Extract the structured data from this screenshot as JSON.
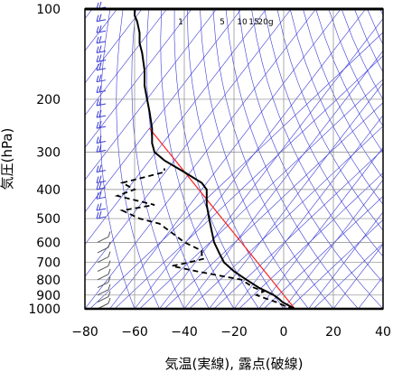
{
  "chart_data": {
    "type": "line",
    "title": "",
    "xlabel": "気温(実線), 露点(破線)",
    "ylabel": "気圧(hPa)",
    "x_unit": "°C",
    "y_scale": "log",
    "xlim": [
      -80,
      40
    ],
    "ylim": [
      1000,
      100
    ],
    "x_ticks": [
      -80,
      -60,
      -40,
      -20,
      0,
      20,
      40
    ],
    "x_tick_labels": [
      "−80",
      "−60",
      "−40",
      "−20",
      "0",
      "20",
      "40"
    ],
    "y_ticks": [
      100,
      200,
      300,
      400,
      500,
      600,
      700,
      800,
      900,
      1000
    ],
    "y_tick_labels": [
      "100",
      "200",
      "300",
      "400",
      "500",
      "600",
      "700",
      "800",
      "900",
      "1000"
    ],
    "mixing_ratio_labels": [
      "1",
      "5",
      "10",
      "15",
      "20g"
    ],
    "colors": {
      "temperature": "#000000",
      "dewpoint": "#000000",
      "background_lines": "#3a3ad6",
      "reference_line": "#ff2020",
      "wind_barbs": "#3a3ad6",
      "surface_barbs": "#555555"
    },
    "series": [
      {
        "points": [
          [
            1000,
            4.5
          ],
          [
            975,
            2
          ],
          [
            950,
            -0.5
          ],
          [
            925,
            -2
          ],
          [
            900,
            -4
          ],
          [
            875,
            -7
          ],
          [
            850,
            -10
          ],
          [
            800,
            -15
          ],
          [
            750,
            -20
          ],
          [
            700,
            -24
          ],
          [
            650,
            -26
          ],
          [
            600,
            -28
          ],
          [
            550,
            -29
          ],
          [
            500,
            -30
          ],
          [
            450,
            -31
          ],
          [
            400,
            -31
          ],
          [
            380,
            -33
          ],
          [
            350,
            -40
          ],
          [
            320,
            -48
          ],
          [
            300,
            -52
          ],
          [
            280,
            -53
          ],
          [
            250,
            -53
          ],
          [
            220,
            -54
          ],
          [
            200,
            -55
          ],
          [
            180,
            -56
          ],
          [
            160,
            -56
          ],
          [
            140,
            -57
          ],
          [
            130,
            -58
          ],
          [
            120,
            -58
          ],
          [
            110,
            -59
          ],
          [
            105,
            -60
          ],
          [
            100,
            -60
          ]
        ]
      },
      {
        "points": [
          [
            1000,
            4
          ],
          [
            975,
            0
          ],
          [
            950,
            -3
          ],
          [
            925,
            -7
          ],
          [
            900,
            -11
          ],
          [
            875,
            -8
          ],
          [
            850,
            -12
          ],
          [
            800,
            -17
          ],
          [
            750,
            -35
          ],
          [
            720,
            -45
          ],
          [
            700,
            -38
          ],
          [
            680,
            -32
          ],
          [
            660,
            -33
          ],
          [
            640,
            -33
          ],
          [
            600,
            -40
          ],
          [
            550,
            -46
          ],
          [
            520,
            -50
          ],
          [
            500,
            -58
          ],
          [
            470,
            -65
          ],
          [
            450,
            -52
          ],
          [
            420,
            -67
          ],
          [
            400,
            -60
          ],
          [
            380,
            -65
          ],
          [
            350,
            -48
          ],
          [
            340,
            -48
          ]
        ]
      }
    ],
    "wind_barbs_upper": [
      100,
      110,
      120,
      130,
      140,
      150,
      160,
      175,
      190,
      210,
      230,
      250,
      280,
      300,
      350,
      380,
      400,
      430,
      470,
      500
    ],
    "wind_barbs_lower": [
      600,
      650,
      700,
      750,
      800,
      850,
      900,
      950,
      1000
    ]
  }
}
